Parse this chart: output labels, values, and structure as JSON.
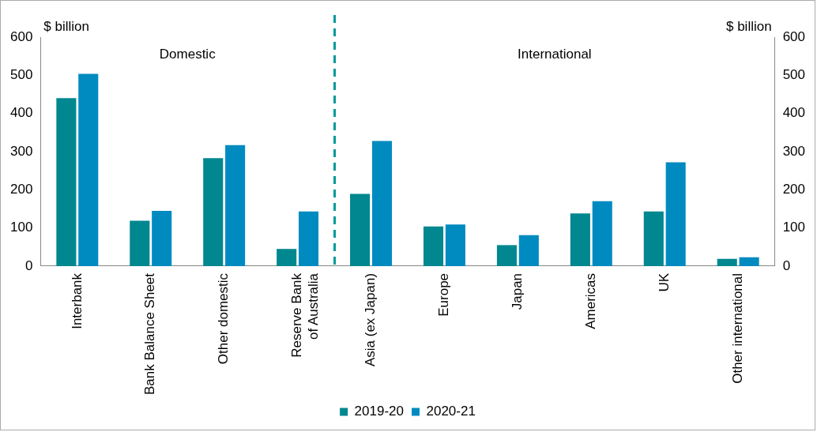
{
  "chart_data": {
    "type": "bar",
    "ylabel": "$ billion",
    "y2label": "$ billion",
    "categories": [
      "Interbank",
      "Bank Balance Sheet",
      "Other domestic",
      "Reserve Bank of Australia",
      "Asia (ex Japan)",
      "Europe",
      "Japan",
      "Americas",
      "UK",
      "Other international"
    ],
    "series": [
      {
        "name": "2019-20",
        "color": "#00878f",
        "values": [
          440,
          119,
          283,
          45,
          189,
          104,
          55,
          138,
          143,
          19
        ]
      },
      {
        "name": "2020-21",
        "color": "#008bc0",
        "values": [
          504,
          145,
          317,
          143,
          328,
          109,
          81,
          170,
          272,
          23
        ]
      }
    ],
    "ylim": [
      0,
      600
    ],
    "yticks": [
      0,
      100,
      200,
      300,
      400,
      500,
      600
    ],
    "y2lim": [
      0,
      600
    ],
    "y2ticks": [
      0,
      100,
      200,
      300,
      400,
      500,
      600
    ],
    "ref_lines": [
      {
        "axis": "x",
        "color": "#00999a",
        "line_style": "dashed"
      }
    ],
    "annotations": [
      "Domestic",
      "International"
    ],
    "grid": false,
    "legend": "bottom"
  }
}
